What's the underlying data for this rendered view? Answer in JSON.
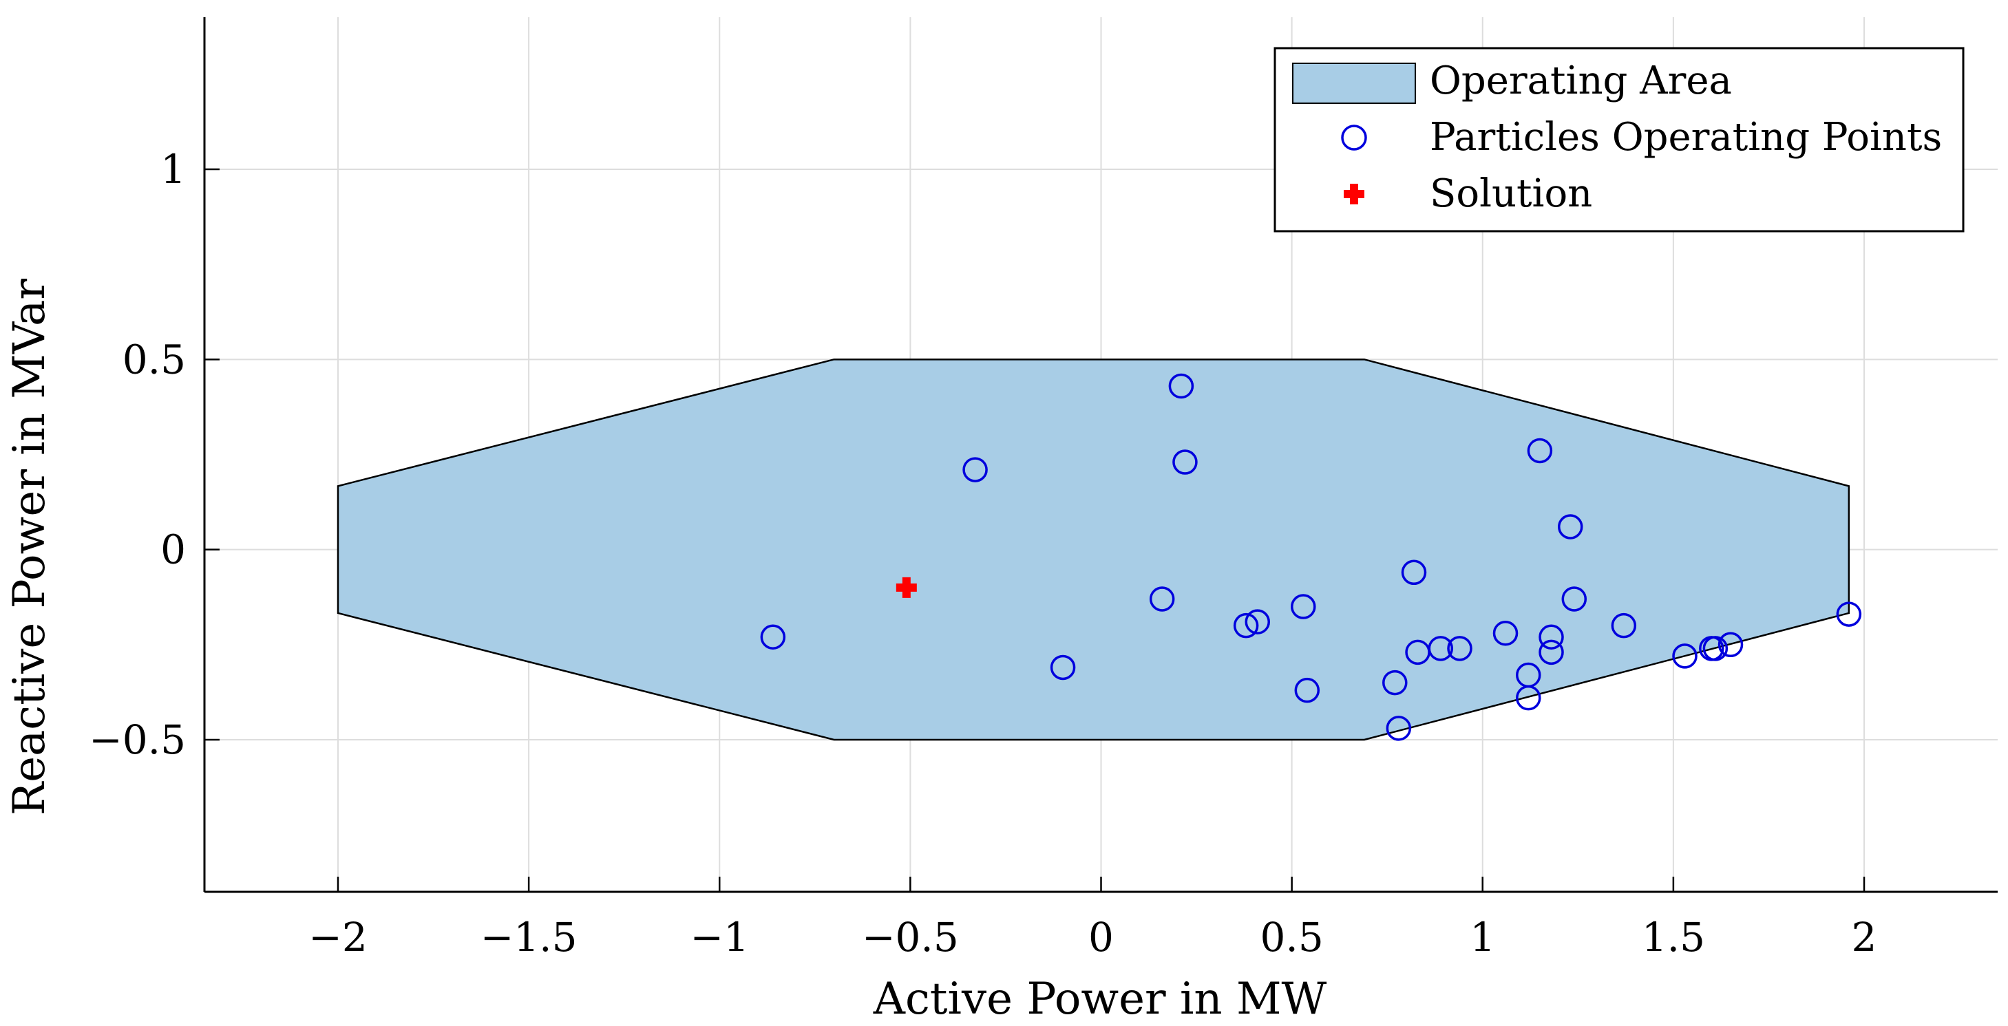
{
  "chart_data": {
    "type": "scatter",
    "title": "",
    "xlabel": "Active Power in MW",
    "ylabel": "Reactive Power in MVar",
    "xlim": [
      -2.35,
      2.35
    ],
    "ylim": [
      -0.9,
      1.4
    ],
    "grid": true,
    "legend_position": "top-right",
    "x_ticks": [
      -2,
      -1.5,
      -1,
      -0.5,
      0,
      0.5,
      1,
      1.5,
      2
    ],
    "x_tick_labels": [
      "−2",
      "−1.5",
      "−1",
      "−0.5",
      "0",
      "0.5",
      "1",
      "1.5",
      "2"
    ],
    "y_ticks": [
      -0.5,
      0,
      0.5,
      1
    ],
    "y_tick_labels": [
      "−0.5",
      "0",
      "0.5",
      "1"
    ],
    "colors": {
      "area_fill": "#a8cde6",
      "area_stroke": "#000000",
      "particle": "#0000dd",
      "solution": "#ff0000",
      "grid": "#dddddd"
    },
    "series": [
      {
        "name": "Operating Area",
        "kind": "polygon",
        "points": [
          [
            -2.0,
            0.167
          ],
          [
            -0.7,
            0.5
          ],
          [
            0.69,
            0.5
          ],
          [
            1.96,
            0.167
          ],
          [
            1.96,
            -0.167
          ],
          [
            0.69,
            -0.5
          ],
          [
            -0.7,
            -0.5
          ],
          [
            -2.0,
            -0.167
          ]
        ]
      },
      {
        "name": "Particles Operating Points",
        "kind": "scatter",
        "marker": "circle-open",
        "points": [
          [
            -0.86,
            -0.23
          ],
          [
            -0.33,
            0.21
          ],
          [
            -0.1,
            -0.31
          ],
          [
            0.16,
            -0.13
          ],
          [
            0.21,
            0.43
          ],
          [
            0.22,
            0.23
          ],
          [
            0.38,
            -0.2
          ],
          [
            0.41,
            -0.19
          ],
          [
            0.53,
            -0.15
          ],
          [
            0.54,
            -0.37
          ],
          [
            0.77,
            -0.35
          ],
          [
            0.78,
            -0.47
          ],
          [
            0.82,
            -0.06
          ],
          [
            0.83,
            -0.27
          ],
          [
            0.89,
            -0.26
          ],
          [
            0.94,
            -0.26
          ],
          [
            1.06,
            -0.22
          ],
          [
            1.12,
            -0.33
          ],
          [
            1.12,
            -0.39
          ],
          [
            1.15,
            0.26
          ],
          [
            1.18,
            -0.23
          ],
          [
            1.18,
            -0.27
          ],
          [
            1.23,
            0.06
          ],
          [
            1.24,
            -0.13
          ],
          [
            1.37,
            -0.2
          ],
          [
            1.53,
            -0.28
          ],
          [
            1.6,
            -0.26
          ],
          [
            1.61,
            -0.26
          ],
          [
            1.65,
            -0.25
          ],
          [
            1.96,
            -0.17
          ]
        ]
      },
      {
        "name": "Solution",
        "kind": "scatter",
        "marker": "plus-filled",
        "points": [
          [
            -0.51,
            -0.1
          ]
        ]
      }
    ]
  }
}
